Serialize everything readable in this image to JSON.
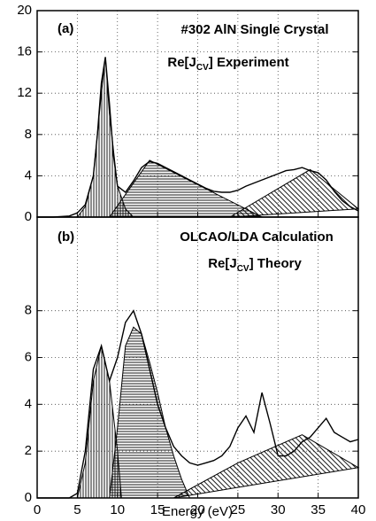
{
  "chart_data": [
    {
      "type": "line",
      "annotations": [
        "(a)",
        "#302 AlN Single Crystal",
        {
          "text": "Re[J",
          "sub": "CV",
          "tail": "] Experiment"
        }
      ],
      "xlim": [
        0,
        40
      ],
      "xticks": [
        0,
        5,
        10,
        15,
        20,
        25,
        30,
        35,
        40
      ],
      "show_xtick_labels": false,
      "ylim": [
        0,
        20
      ],
      "yticks": [
        0,
        4,
        8,
        12,
        16,
        20
      ],
      "grid": true,
      "series": [
        {
          "style": "vertical-hatch",
          "color": "#000000",
          "x": [
            5,
            6,
            7,
            8,
            8.5,
            9,
            10,
            11,
            12
          ],
          "values": [
            0,
            1,
            4,
            12,
            15.5,
            10,
            3,
            0.8,
            0
          ]
        },
        {
          "style": "horizontal-hatch",
          "color": "#000000",
          "x": [
            9,
            14,
            28
          ],
          "values": [
            0,
            5.5,
            0
          ]
        },
        {
          "style": "diagonal-hatch",
          "color": "#000000",
          "x": [
            24,
            34,
            40
          ],
          "values": [
            0,
            4.6,
            0.8
          ]
        },
        {
          "style": "line",
          "color": "#000000",
          "x": [
            0,
            2,
            4,
            5,
            6,
            7,
            7.5,
            8,
            8.5,
            9,
            9.5,
            10,
            11,
            12,
            13,
            14,
            15,
            16,
            17,
            18,
            19,
            20,
            21,
            22,
            23,
            24,
            25,
            26,
            27,
            28,
            29,
            30,
            31,
            32,
            33,
            34,
            35,
            36,
            37,
            38,
            39,
            40
          ],
          "values": [
            0,
            0,
            0.1,
            0.4,
            1.2,
            4,
            8,
            13,
            15.5,
            11,
            6,
            3,
            2.4,
            3.5,
            4.8,
            5.4,
            5.2,
            4.8,
            4.4,
            4.0,
            3.6,
            3.2,
            2.8,
            2.5,
            2.4,
            2.4,
            2.6,
            3.0,
            3.3,
            3.6,
            3.9,
            4.2,
            4.5,
            4.6,
            4.8,
            4.5,
            4.3,
            3.6,
            2.5,
            1.6,
            1.0,
            0.6
          ]
        }
      ]
    },
    {
      "type": "line",
      "annotations": [
        "(b)",
        "OLCAO/LDA Calculation",
        {
          "text": "Re[J",
          "sub": "CV",
          "tail": "] Theory"
        }
      ],
      "x_label": "Energy (eV)",
      "xlim": [
        0,
        40
      ],
      "xticks": [
        0,
        5,
        10,
        15,
        20,
        25,
        30,
        35,
        40
      ],
      "show_xtick_labels": true,
      "ylim": [
        0,
        12
      ],
      "yticks": [
        0,
        2,
        4,
        6,
        8
      ],
      "grid": true,
      "series": [
        {
          "style": "vertical-hatch",
          "color": "#000000",
          "x": [
            5,
            6,
            7,
            8,
            9,
            10,
            10.5
          ],
          "values": [
            0,
            1.5,
            5,
            6.5,
            5,
            2,
            0
          ]
        },
        {
          "style": "horizontal-hatch",
          "color": "#000000",
          "x": [
            9,
            10,
            11,
            12,
            13,
            14,
            15,
            16,
            17,
            18,
            19
          ],
          "values": [
            0,
            3,
            6.5,
            7.3,
            7,
            5.8,
            4.5,
            3,
            1.8,
            0.8,
            0
          ]
        },
        {
          "style": "diagonal-hatch",
          "color": "#000000",
          "x": [
            17,
            25,
            33,
            40
          ],
          "values": [
            0,
            1.5,
            2.7,
            1.3
          ]
        },
        {
          "style": "line",
          "color": "#000000",
          "x": [
            0,
            1,
            2,
            3,
            4,
            5,
            6,
            7,
            8,
            9,
            10,
            11,
            12,
            13,
            14,
            15,
            16,
            17,
            18,
            19,
            20,
            21,
            22,
            23,
            24,
            25,
            26,
            27,
            28,
            29,
            30,
            31,
            32,
            33,
            34,
            35,
            36,
            37,
            38,
            39,
            40
          ],
          "values": [
            0,
            0,
            0,
            0,
            0,
            0.2,
            2,
            5.5,
            6.5,
            5,
            6,
            7.5,
            8,
            7,
            5.5,
            4,
            3,
            2.2,
            1.8,
            1.5,
            1.4,
            1.5,
            1.6,
            1.8,
            2.2,
            3,
            3.5,
            2.8,
            4.5,
            3.2,
            1.8,
            1.8,
            2,
            2.4,
            2.6,
            3,
            3.4,
            2.8,
            2.6,
            2.4,
            2.5
          ]
        }
      ]
    }
  ]
}
